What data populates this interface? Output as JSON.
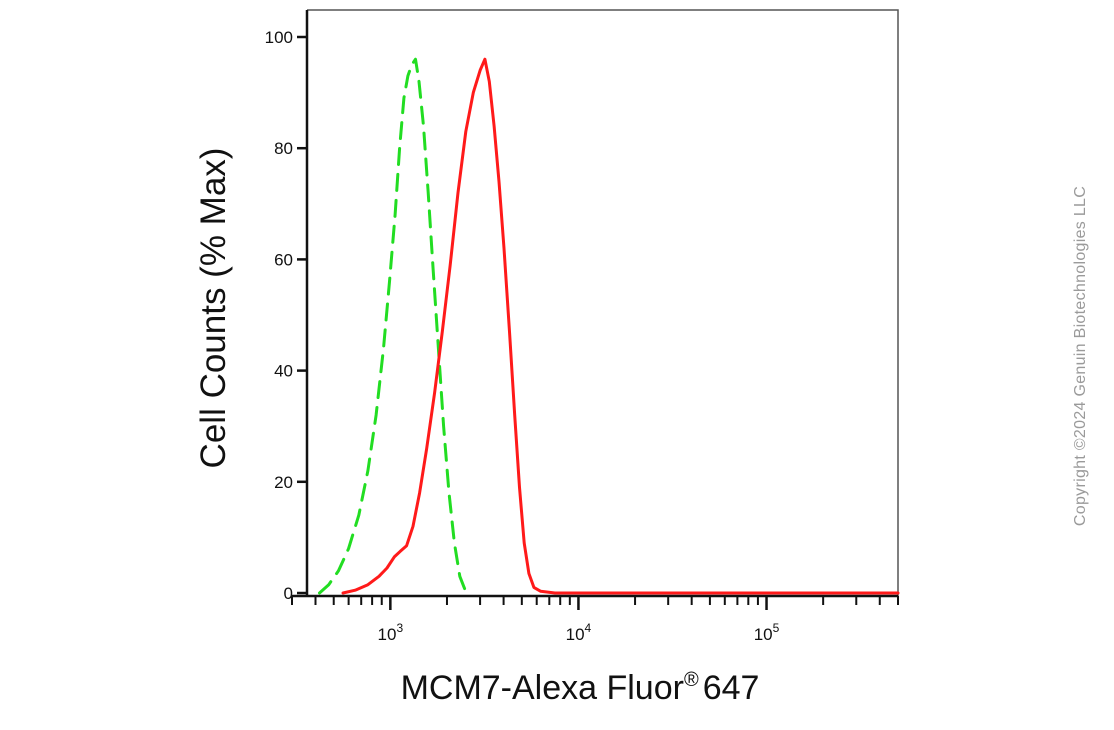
{
  "chart_data": {
    "type": "line",
    "title": "",
    "xlabel": "MCM7-Alexa Fluor",
    "xlabel_superscript": "®",
    "xlabel_suffix": "647",
    "ylabel": "Cell Counts (% Max)",
    "x_scale": "log",
    "xlim": [
      300,
      500000
    ],
    "ylim": [
      0,
      105
    ],
    "yticks": [
      0,
      20,
      40,
      60,
      80,
      100
    ],
    "xticks": [
      {
        "value": 1000,
        "base": "10",
        "exponent": "3"
      },
      {
        "value": 10000,
        "base": "10",
        "exponent": "4"
      },
      {
        "value": 100000,
        "base": "10",
        "exponent": "5"
      }
    ],
    "grid": false,
    "legend": "none",
    "series": [
      {
        "color": "#ff1a1a",
        "style": "solid",
        "points": [
          [
            560,
            0
          ],
          [
            650,
            0.5
          ],
          [
            760,
            1.5
          ],
          [
            870,
            3
          ],
          [
            960,
            4.5
          ],
          [
            1050,
            6.5
          ],
          [
            1130,
            7.5
          ],
          [
            1220,
            8.5
          ],
          [
            1320,
            12
          ],
          [
            1430,
            18
          ],
          [
            1560,
            26
          ],
          [
            1720,
            36
          ],
          [
            1890,
            47
          ],
          [
            2080,
            59
          ],
          [
            2290,
            72
          ],
          [
            2520,
            83
          ],
          [
            2760,
            90
          ],
          [
            3000,
            94
          ],
          [
            3180,
            96
          ],
          [
            3360,
            92
          ],
          [
            3560,
            84
          ],
          [
            3780,
            74
          ],
          [
            4020,
            62
          ],
          [
            4300,
            47
          ],
          [
            4580,
            32
          ],
          [
            4860,
            19
          ],
          [
            5150,
            9
          ],
          [
            5450,
            3.5
          ],
          [
            5800,
            1
          ],
          [
            6300,
            0.3
          ],
          [
            7500,
            0
          ],
          [
            20000,
            0
          ],
          [
            100000,
            0
          ],
          [
            500000,
            0
          ]
        ]
      },
      {
        "color": "#22dd22",
        "style": "dashed",
        "points": [
          [
            420,
            0
          ],
          [
            470,
            1.5
          ],
          [
            530,
            4
          ],
          [
            600,
            8
          ],
          [
            680,
            14
          ],
          [
            760,
            22
          ],
          [
            840,
            32
          ],
          [
            920,
            44
          ],
          [
            990,
            56
          ],
          [
            1060,
            68
          ],
          [
            1120,
            80
          ],
          [
            1180,
            89
          ],
          [
            1240,
            93
          ],
          [
            1300,
            95
          ],
          [
            1360,
            96
          ],
          [
            1420,
            92
          ],
          [
            1500,
            84
          ],
          [
            1590,
            72
          ],
          [
            1690,
            58
          ],
          [
            1800,
            44
          ],
          [
            1920,
            30
          ],
          [
            2050,
            18
          ],
          [
            2190,
            9
          ],
          [
            2340,
            3
          ],
          [
            2500,
            0.5
          ],
          [
            2700,
            0
          ]
        ]
      }
    ]
  },
  "watermark": {
    "text": "Copyright ©2024 Genuin Biotechnologies LLC"
  }
}
